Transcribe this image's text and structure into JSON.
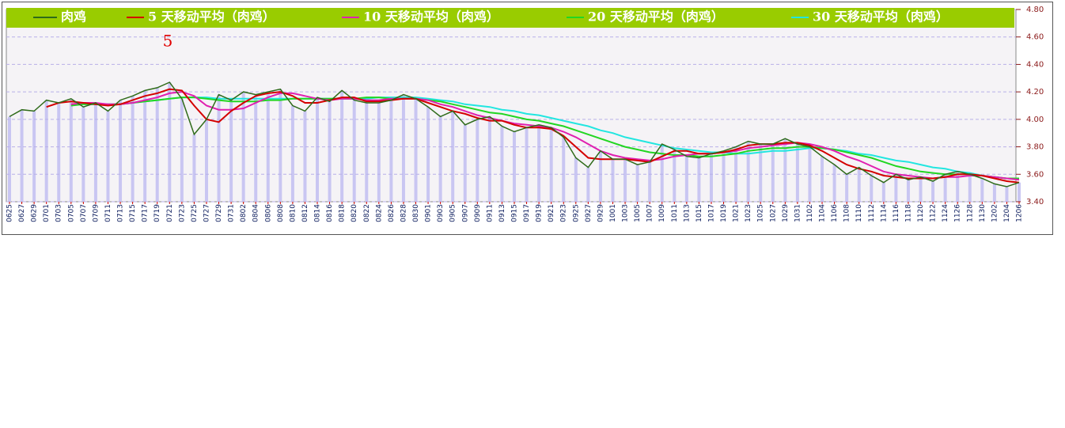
{
  "chart_data": {
    "type": "line",
    "annotation": "5",
    "categories": [
      "0625",
      "0627",
      "0629",
      "0701",
      "0703",
      "0705",
      "0707",
      "0709",
      "0711",
      "0713",
      "0715",
      "0717",
      "0719",
      "0721",
      "0723",
      "0725",
      "0727",
      "0729",
      "0731",
      "0802",
      "0804",
      "0806",
      "0808",
      "0810",
      "0812",
      "0814",
      "0816",
      "0818",
      "0820",
      "0822",
      "0824",
      "0826",
      "0828",
      "0830",
      "0901",
      "0903",
      "0905",
      "0907",
      "0909",
      "0911",
      "0913",
      "0915",
      "0917",
      "0919",
      "0921",
      "0923",
      "0925",
      "0927",
      "0929",
      "1001",
      "1003",
      "1005",
      "1007",
      "1009",
      "1011",
      "1013",
      "1015",
      "1017",
      "1019",
      "1021",
      "1023",
      "1025",
      "1027",
      "1029",
      "1031",
      "1102",
      "1104",
      "1106",
      "1108",
      "1110",
      "1112",
      "1114",
      "1116",
      "1118",
      "1120",
      "1122",
      "1124",
      "1126",
      "1128",
      "1130",
      "1202",
      "1204",
      "1206"
    ],
    "series": [
      {
        "name": "肉鸡",
        "color": "#2f6b1a",
        "values": [
          4.02,
          4.07,
          4.06,
          4.14,
          4.12,
          4.15,
          4.09,
          4.12,
          4.06,
          4.14,
          4.17,
          4.21,
          4.23,
          4.27,
          4.15,
          3.89,
          4.0,
          4.18,
          4.14,
          4.2,
          4.18,
          4.2,
          4.22,
          4.1,
          4.06,
          4.16,
          4.13,
          4.21,
          4.14,
          4.12,
          4.12,
          4.14,
          4.18,
          4.15,
          4.09,
          4.02,
          4.06,
          3.96,
          4.0,
          4.02,
          3.95,
          3.91,
          3.94,
          3.96,
          3.94,
          3.87,
          3.72,
          3.65,
          3.77,
          3.71,
          3.71,
          3.67,
          3.69,
          3.82,
          3.78,
          3.73,
          3.72,
          3.75,
          3.77,
          3.8,
          3.84,
          3.82,
          3.82,
          3.86,
          3.82,
          3.8,
          3.73,
          3.67,
          3.6,
          3.65,
          3.59,
          3.54,
          3.6,
          3.56,
          3.58,
          3.55,
          3.6,
          3.62,
          3.6,
          3.57,
          3.53,
          3.51,
          3.54
        ]
      },
      {
        "name": "5 天移动平均（肉鸡）",
        "color": "#d40000",
        "values": [
          null,
          null,
          null,
          4.09,
          4.12,
          4.13,
          4.12,
          4.11,
          4.1,
          4.11,
          4.14,
          4.17,
          4.19,
          4.22,
          4.21,
          4.1,
          4.0,
          3.98,
          4.06,
          4.12,
          4.17,
          4.19,
          4.2,
          4.17,
          4.12,
          4.12,
          4.14,
          4.16,
          4.16,
          4.13,
          4.13,
          4.14,
          4.15,
          4.15,
          4.12,
          4.09,
          4.06,
          4.04,
          4.01,
          3.99,
          3.99,
          3.96,
          3.94,
          3.94,
          3.93,
          3.88,
          3.8,
          3.72,
          3.71,
          3.71,
          3.71,
          3.7,
          3.69,
          3.73,
          3.77,
          3.77,
          3.75,
          3.75,
          3.76,
          3.78,
          3.81,
          3.82,
          3.82,
          3.83,
          3.83,
          3.81,
          3.77,
          3.72,
          3.67,
          3.64,
          3.62,
          3.59,
          3.58,
          3.57,
          3.57,
          3.57,
          3.58,
          3.6,
          3.6,
          3.59,
          3.57,
          3.55,
          3.54
        ]
      },
      {
        "name": "10 天移动平均（肉鸡）",
        "color": "#e020b0",
        "values": [
          null,
          null,
          null,
          null,
          null,
          4.11,
          4.12,
          4.12,
          4.11,
          4.11,
          4.12,
          4.14,
          4.16,
          4.19,
          4.2,
          4.17,
          4.1,
          4.07,
          4.07,
          4.08,
          4.12,
          4.16,
          4.19,
          4.19,
          4.17,
          4.15,
          4.14,
          4.15,
          4.15,
          4.14,
          4.14,
          4.15,
          4.15,
          4.15,
          4.14,
          4.11,
          4.09,
          4.06,
          4.03,
          4.01,
          3.99,
          3.97,
          3.96,
          3.95,
          3.94,
          3.91,
          3.87,
          3.82,
          3.77,
          3.74,
          3.72,
          3.71,
          3.7,
          3.71,
          3.73,
          3.74,
          3.75,
          3.75,
          3.76,
          3.77,
          3.79,
          3.8,
          3.81,
          3.82,
          3.83,
          3.82,
          3.8,
          3.77,
          3.73,
          3.7,
          3.66,
          3.62,
          3.6,
          3.59,
          3.58,
          3.57,
          3.58,
          3.58,
          3.59,
          3.59,
          3.58,
          3.57,
          3.56
        ]
      },
      {
        "name": "20 天移动平均（肉鸡）",
        "color": "#22d622",
        "values": [
          null,
          null,
          null,
          null,
          null,
          4.1,
          4.11,
          4.11,
          4.11,
          4.11,
          4.12,
          4.13,
          4.14,
          4.15,
          4.16,
          4.16,
          4.15,
          4.14,
          4.13,
          4.13,
          4.13,
          4.14,
          4.14,
          4.15,
          4.15,
          4.15,
          4.15,
          4.15,
          4.15,
          4.16,
          4.16,
          4.15,
          4.15,
          4.15,
          4.14,
          4.13,
          4.11,
          4.09,
          4.07,
          4.05,
          4.04,
          4.02,
          4.0,
          3.99,
          3.97,
          3.95,
          3.92,
          3.89,
          3.86,
          3.83,
          3.8,
          3.78,
          3.76,
          3.75,
          3.74,
          3.74,
          3.73,
          3.73,
          3.74,
          3.75,
          3.77,
          3.78,
          3.79,
          3.79,
          3.8,
          3.8,
          3.79,
          3.78,
          3.76,
          3.74,
          3.72,
          3.69,
          3.66,
          3.64,
          3.62,
          3.61,
          3.6,
          3.6,
          3.6,
          3.59,
          3.58,
          3.57,
          3.57
        ]
      },
      {
        "name": "30 天移动平均（肉鸡）",
        "color": "#22e6e0",
        "values": [
          null,
          null,
          null,
          null,
          null,
          null,
          4.11,
          4.11,
          4.11,
          4.11,
          4.12,
          4.13,
          4.14,
          4.15,
          4.16,
          4.16,
          4.16,
          4.15,
          4.15,
          4.15,
          4.15,
          4.15,
          4.15,
          4.15,
          4.15,
          4.15,
          4.15,
          4.15,
          4.15,
          4.15,
          4.16,
          4.16,
          4.16,
          4.16,
          4.15,
          4.14,
          4.13,
          4.11,
          4.1,
          4.09,
          4.07,
          4.06,
          4.04,
          4.03,
          4.01,
          3.99,
          3.97,
          3.95,
          3.92,
          3.9,
          3.87,
          3.85,
          3.83,
          3.81,
          3.79,
          3.78,
          3.77,
          3.76,
          3.76,
          3.75,
          3.75,
          3.76,
          3.77,
          3.77,
          3.78,
          3.79,
          3.79,
          3.78,
          3.77,
          3.75,
          3.74,
          3.72,
          3.7,
          3.69,
          3.67,
          3.65,
          3.64,
          3.62,
          3.61,
          3.59,
          3.58,
          3.57,
          3.57
        ]
      }
    ],
    "ylim": [
      3.4,
      4.8
    ],
    "yticks": [
      {
        "value": 3.4,
        "label": "3.40"
      },
      {
        "value": 3.6,
        "label": "3.60"
      },
      {
        "value": 3.8,
        "label": "3.80"
      },
      {
        "value": 4.0,
        "label": "4.00"
      },
      {
        "value": 4.2,
        "label": "4.20"
      },
      {
        "value": 4.4,
        "label": "4.40"
      },
      {
        "value": 4.6,
        "label": "4.60"
      },
      {
        "value": 4.8,
        "label": "4.80"
      }
    ],
    "grid": true,
    "legend": "top"
  }
}
